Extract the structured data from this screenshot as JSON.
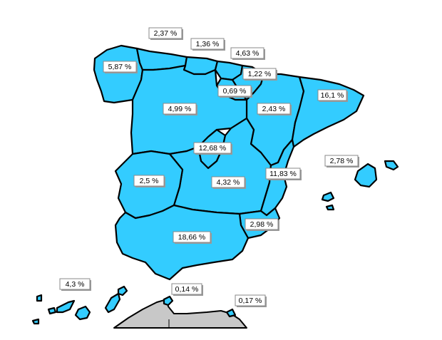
{
  "map": {
    "fill_color": "#33ccff",
    "africa_fill_color": "#c8c8c8",
    "border_color": "#000000"
  },
  "regions": [
    {
      "id": "galicia",
      "value": "5,87 %"
    },
    {
      "id": "asturias",
      "value": "2,37 %"
    },
    {
      "id": "cantabria",
      "value": "1,36 %"
    },
    {
      "id": "pais-vasco",
      "value": "4,63 %"
    },
    {
      "id": "navarra",
      "value": "1,22 %"
    },
    {
      "id": "la-rioja",
      "value": "0,69 %"
    },
    {
      "id": "aragon",
      "value": "2,43 %"
    },
    {
      "id": "cataluna",
      "value": "16,1 %"
    },
    {
      "id": "castilla-y-leon",
      "value": "4,99 %"
    },
    {
      "id": "madrid",
      "value": "12,68 %"
    },
    {
      "id": "castilla-la-mancha",
      "value": "4,32 %"
    },
    {
      "id": "valencia",
      "value": "11,83 %"
    },
    {
      "id": "baleares",
      "value": "2,78 %"
    },
    {
      "id": "extremadura",
      "value": "2,5 %"
    },
    {
      "id": "murcia",
      "value": "2,98 %"
    },
    {
      "id": "andalucia",
      "value": "18,66 %"
    },
    {
      "id": "canarias",
      "value": "4,3 %"
    },
    {
      "id": "ceuta",
      "value": "0,14 %"
    },
    {
      "id": "melilla",
      "value": "0,17 %"
    }
  ]
}
